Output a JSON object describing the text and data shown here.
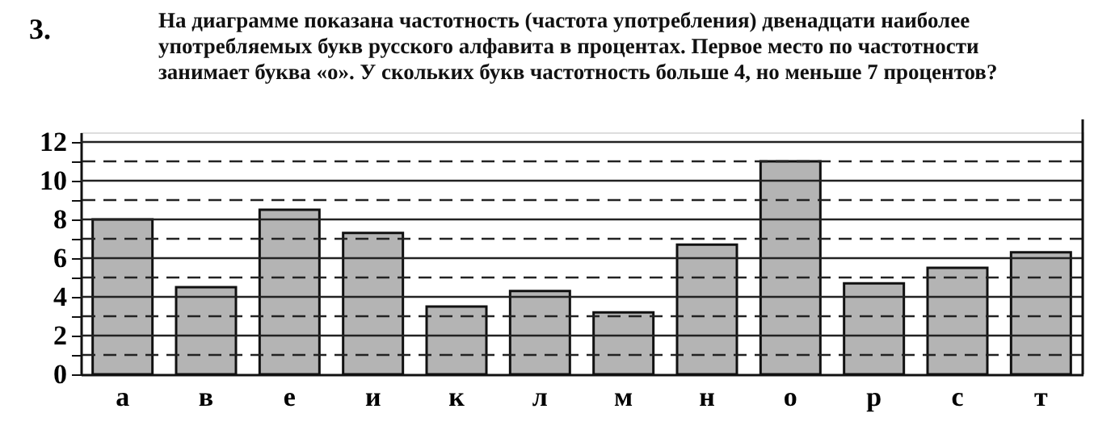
{
  "chart_data": {
    "type": "bar",
    "title": "На диаграмме показана частотность (частота употребления) двенадцати наиболее употребляемых букв русского алфавита в процентах. Первое место по частотности занимает буква «о». У скольких букв частотность больше 4, но меньше 7 процентов?",
    "annotations": [
      "3."
    ],
    "categories": [
      "а",
      "в",
      "е",
      "и",
      "к",
      "л",
      "м",
      "н",
      "о",
      "р",
      "с",
      "т"
    ],
    "values": [
      8.0,
      4.5,
      8.5,
      7.3,
      3.5,
      4.3,
      3.2,
      6.7,
      11.0,
      4.7,
      5.5,
      6.3
    ],
    "color": "#b4b4b4",
    "ylim": [
      0,
      12.5
    ],
    "yticks": [
      0,
      {
        "value": 1,
        "label": null
      },
      2,
      {
        "value": 3,
        "label": null
      },
      4,
      {
        "value": 5,
        "label": null
      },
      6,
      {
        "value": 7,
        "label": null
      },
      8,
      {
        "value": 9,
        "label": null
      },
      10,
      {
        "value": 11,
        "label": null
      },
      12
    ],
    "grid": "y"
  }
}
